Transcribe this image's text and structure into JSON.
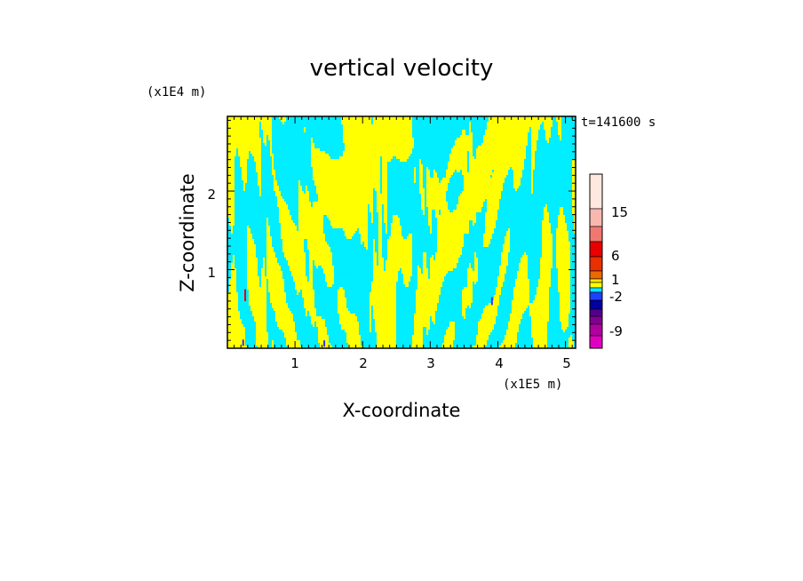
{
  "chart_data": {
    "type": "heatmap",
    "title": "vertical velocity",
    "xlabel": "X-coordinate",
    "ylabel": "Z-coordinate",
    "x_unit": "(x1E5 m)",
    "y_unit": "(x1E4 m)",
    "time_label": "t=141600 s",
    "xlim": [
      0,
      5.15
    ],
    "ylim": [
      0,
      2.95
    ],
    "x_ticks": [
      "1",
      "2",
      "3",
      "4",
      "5"
    ],
    "y_ticks": [
      "1",
      "2"
    ],
    "colorbar": {
      "labels": [
        "15",
        "6",
        "1",
        "-2",
        "-9"
      ],
      "colors": [
        "#ffe8e0",
        "#f8b8b0",
        "#f07870",
        "#e80000",
        "#e83000",
        "#e86a00",
        "#ffe800",
        "#ffff00",
        "#00e8ff",
        "#2040ff",
        "#0000a0",
        "#50008a",
        "#800090",
        "#b000a0",
        "#e000c0"
      ]
    },
    "colors": {
      "positive": "#ffff00",
      "negative": "#00eeff",
      "strong_negative": "#3030ff",
      "strong_positive": "#e00000"
    }
  }
}
